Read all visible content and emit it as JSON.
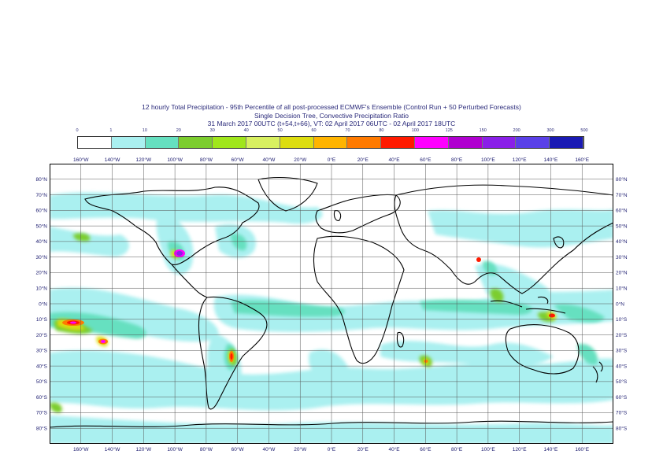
{
  "title": {
    "line1": "12 hourly Total Precipitation - 95th Percentile of all post-processed ECMWF's Ensemble (Control Run + 50 Perturbed Forecasts)",
    "line2": "Single Decision Tree, Convective Precipitation Ratio",
    "line3": "31 March 2017 00UTC (t+54,t+66), VT: 02 April 2017 06UTC - 02 April 2017 18UTC"
  },
  "legend": {
    "levels": [
      "0",
      "1",
      "10",
      "20",
      "30",
      "40",
      "50",
      "60",
      "70",
      "80",
      "100",
      "125",
      "150",
      "200",
      "300",
      "500"
    ],
    "colors": [
      "#ffffff",
      "#aaf0f0",
      "#66e0c0",
      "#7ccd2e",
      "#a0e61c",
      "#d8f060",
      "#dddd10",
      "#ffb400",
      "#ff7a00",
      "#ff1a00",
      "#ff00ff",
      "#b000d0",
      "#8a20e8",
      "#5a40e8",
      "#1a1ab4",
      "#0a0a50"
    ]
  },
  "axes": {
    "top_lon_labels": [
      "160°W",
      "140°W",
      "120°W",
      "100°W",
      "80°W",
      "60°W",
      "40°W",
      "20°W",
      "0°E",
      "20°E",
      "40°E",
      "60°E",
      "80°E",
      "100°E",
      "120°E",
      "140°E",
      "160°E"
    ],
    "bottom_lon_labels": [
      "160°W",
      "140°W",
      "120°W",
      "100°W",
      "80°W",
      "60°W",
      "40°W",
      "20°W",
      "0°E",
      "20°E",
      "40°E",
      "60°E",
      "80°E",
      "100°E",
      "120°E",
      "140°E",
      "160°E"
    ],
    "lat_labels": [
      "80°N",
      "70°N",
      "60°N",
      "50°N",
      "40°N",
      "30°N",
      "20°N",
      "10°N",
      "0°N",
      "10°S",
      "20°S",
      "30°S",
      "40°S",
      "50°S",
      "60°S",
      "70°S",
      "80°S"
    ]
  }
}
